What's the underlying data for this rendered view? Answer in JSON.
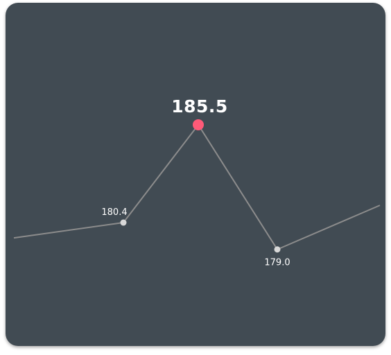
{
  "chart_data": {
    "type": "line",
    "x": [
      0,
      1,
      2,
      3,
      4
    ],
    "values": [
      179.6,
      180.4,
      185.5,
      179.0,
      181.3
    ],
    "point_labels": [
      "",
      "180.4",
      "185.5",
      "179.0",
      ""
    ],
    "highlight_index": 2,
    "ylim": [
      177.4,
      186.8
    ],
    "grid": false,
    "legend": "none",
    "colors": {
      "background": "#414b53",
      "line": "#8c8c8c",
      "point": "#d8d8d8",
      "highlight": "#ff5a78",
      "text": "#ffffff"
    }
  }
}
